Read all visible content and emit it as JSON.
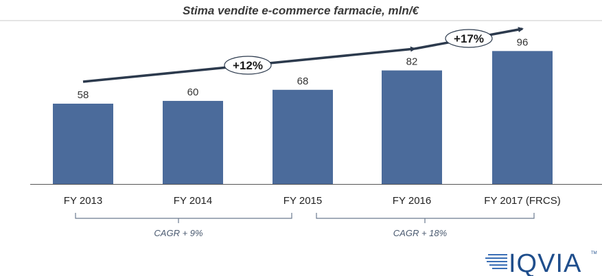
{
  "chart_data": {
    "type": "bar",
    "title": "Stima vendite e-commerce farmacie, mln/€",
    "categories": [
      "FY 2013",
      "FY 2014",
      "FY 2015",
      "FY 2016",
      "FY 2017 (FRCS)"
    ],
    "values": [
      58,
      60,
      68,
      82,
      96
    ],
    "data_labels": [
      "58",
      "60",
      "68",
      "82",
      "96"
    ],
    "ylim": [
      0,
      115
    ],
    "bar_color": "#4b6b9b",
    "grid": false,
    "annotations": {
      "growth": [
        {
          "label": "+12%",
          "from": "FY 2013",
          "to": "FY 2016"
        },
        {
          "label": "+17%",
          "from": "FY 2016",
          "to": "FY 2017 (FRCS)"
        }
      ],
      "cagr": [
        {
          "label": "CAGR + 9%",
          "from": "FY 2013",
          "to": "FY 2015"
        },
        {
          "label": "CAGR + 18%",
          "from": "FY 2015",
          "to": "FY 2017 (FRCS)"
        }
      ]
    }
  },
  "logo": {
    "text": "IQVIA",
    "tm": "TM",
    "color": "#1f4e8c"
  }
}
